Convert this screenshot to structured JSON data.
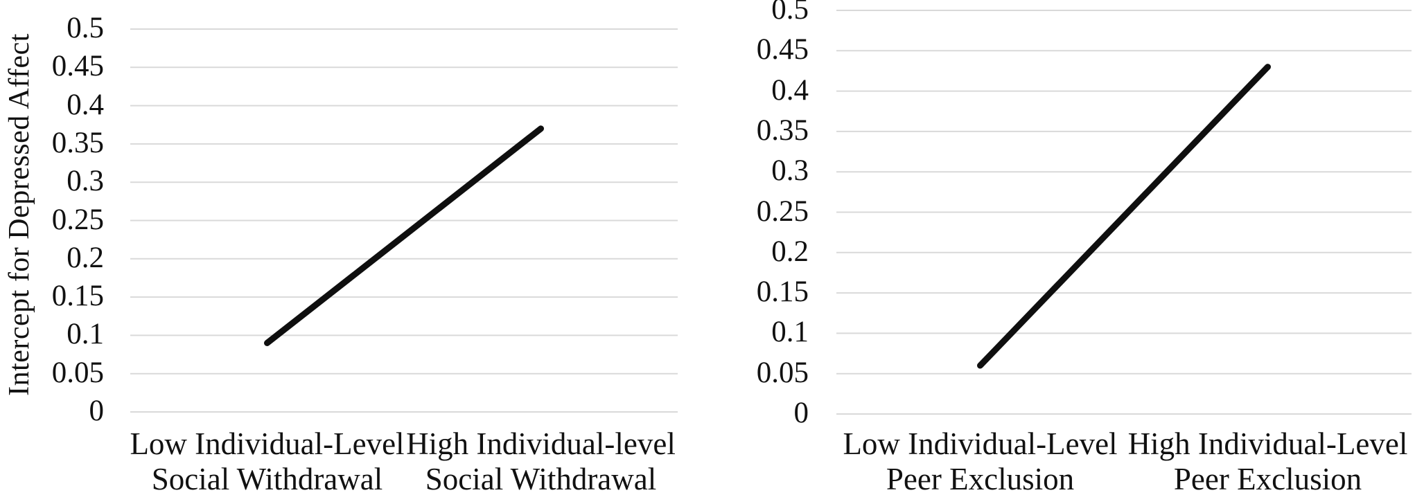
{
  "figure": {
    "background": "#ffffff",
    "text_color": "#111111"
  },
  "chart_data": [
    {
      "type": "line",
      "title": "",
      "ylabel": "Intercept for Depressed Affect",
      "xlabel": "",
      "categories": [
        [
          "Low Individual-Level",
          "Social Withdrawal"
        ],
        [
          "High Individual-level",
          "Social Withdrawal"
        ]
      ],
      "values": [
        0.09,
        0.37
      ],
      "ylim": [
        0,
        0.5
      ],
      "yticks": [
        0,
        0.05,
        0.1,
        0.15,
        0.2,
        0.25,
        0.3,
        0.35,
        0.4,
        0.45,
        0.5
      ],
      "ytick_labels": [
        "0",
        "0.05",
        "0.1",
        "0.15",
        "0.2",
        "0.25",
        "0.3",
        "0.35",
        "0.4",
        "0.45",
        "0.5"
      ],
      "grid": true,
      "legend": "none",
      "colors": {
        "line": "#0f0f0f",
        "grid": "#d9d9d9",
        "text": "#111111"
      }
    },
    {
      "type": "line",
      "title": "",
      "ylabel": "",
      "xlabel": "",
      "categories": [
        [
          "Low Individual-Level",
          "Peer Exclusion"
        ],
        [
          "High Individual-Level",
          "Peer Exclusion"
        ]
      ],
      "values": [
        0.06,
        0.43
      ],
      "ylim": [
        0,
        0.5
      ],
      "yticks": [
        0,
        0.05,
        0.1,
        0.15,
        0.2,
        0.25,
        0.3,
        0.35,
        0.4,
        0.45,
        0.5
      ],
      "ytick_labels": [
        "0",
        "0.05",
        "0.1",
        "0.15",
        "0.2",
        "0.25",
        "0.3",
        "0.35",
        "0.4",
        "0.45",
        "0.5"
      ],
      "grid": true,
      "legend": "none",
      "colors": {
        "line": "#0f0f0f",
        "grid": "#d9d9d9",
        "text": "#111111"
      }
    }
  ]
}
